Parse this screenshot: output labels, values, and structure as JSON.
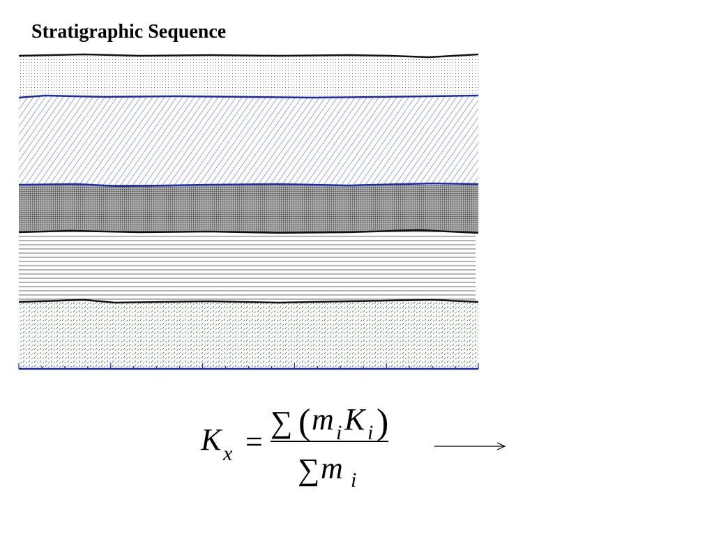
{
  "title": "Stratigraphic Sequence",
  "formula": {
    "lhs": "K",
    "lhs_subscript": "x",
    "equals": "=",
    "numerator": {
      "sum": "∑",
      "open": "(",
      "m": "m",
      "m_subscript": "i",
      "k": "K",
      "k_subscript": "i",
      "close": ")"
    },
    "denominator": {
      "sum": "∑",
      "m": "m",
      "m_subscript": "i"
    }
  }
}
